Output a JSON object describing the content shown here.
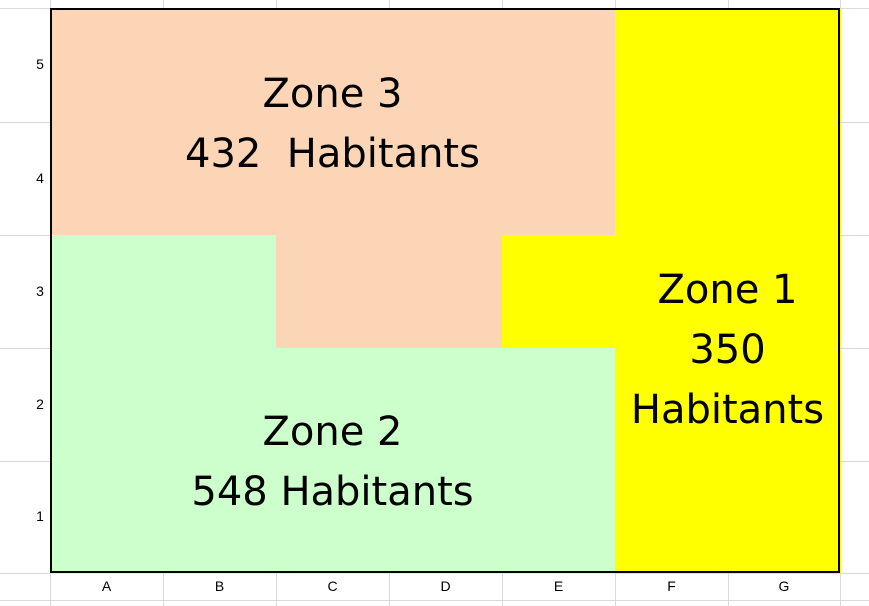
{
  "colors": {
    "zone1": "#ffff00",
    "zone2": "#ccffcc",
    "zone3": "#fbd5b5",
    "grid": "#d9d9d9",
    "border": "#000000"
  },
  "rows": [
    "5",
    "4",
    "3",
    "2",
    "1"
  ],
  "columns": [
    "A",
    "B",
    "C",
    "D",
    "E",
    "F",
    "G"
  ],
  "zones": {
    "zone1": {
      "name": "Zone 1",
      "count": "350",
      "unit": "Habitants"
    },
    "zone2": {
      "name": "Zone 2",
      "line2": "548 Habitants"
    },
    "zone3": {
      "name": "Zone 3",
      "line2": "432  Habitants"
    }
  }
}
